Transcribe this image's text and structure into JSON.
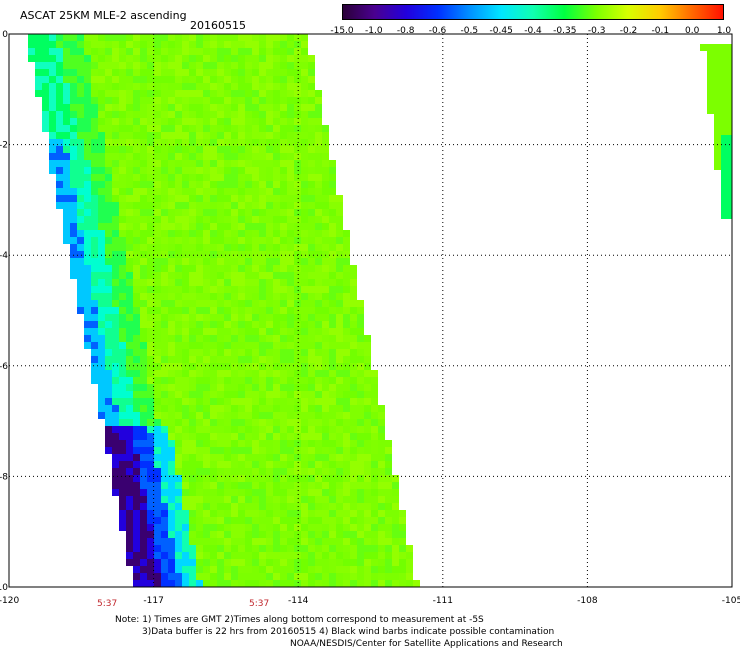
{
  "header": {
    "title": "ASCAT 25KM MLE-2 ascending",
    "date": "20160515"
  },
  "colorbar": {
    "labels": [
      "-15.0",
      "-1.0",
      "-0.8",
      "-0.6",
      "-0.5",
      "-0.45",
      "-0.4",
      "-0.35",
      "-0.3",
      "-0.2",
      "-0.1",
      "0.0",
      "1.0"
    ],
    "colors": [
      "#2a0038",
      "#4a0090",
      "#2200dd",
      "#0030ff",
      "#0090ff",
      "#00e6ff",
      "#10ffb0",
      "#00ff40",
      "#7cff00",
      "#d8ff00",
      "#ffcc00",
      "#ff6a00",
      "#ff1000"
    ]
  },
  "map": {
    "lon_labels": [
      "-120",
      "-117",
      "-114",
      "-111",
      "-108",
      "-105"
    ],
    "lat_labels": [
      "0",
      "-2",
      "-4",
      "-6",
      "-8",
      "-10"
    ],
    "lon_range": [
      -120,
      -105
    ],
    "lat_range": [
      0,
      -10
    ],
    "time_labels": [
      "5:37",
      "5:37"
    ],
    "grid": "dotted"
  },
  "notes": {
    "line1": "Note: 1) Times are GMT 2)Times along bottom correspond to measurement at -5S",
    "line2": "3)Data buffer is 22 hrs from 20160515 4) Black wind barbs indicate possible contamination",
    "line3": "NOAA/NESDIS/Center for Satellite Applications and Research"
  }
}
